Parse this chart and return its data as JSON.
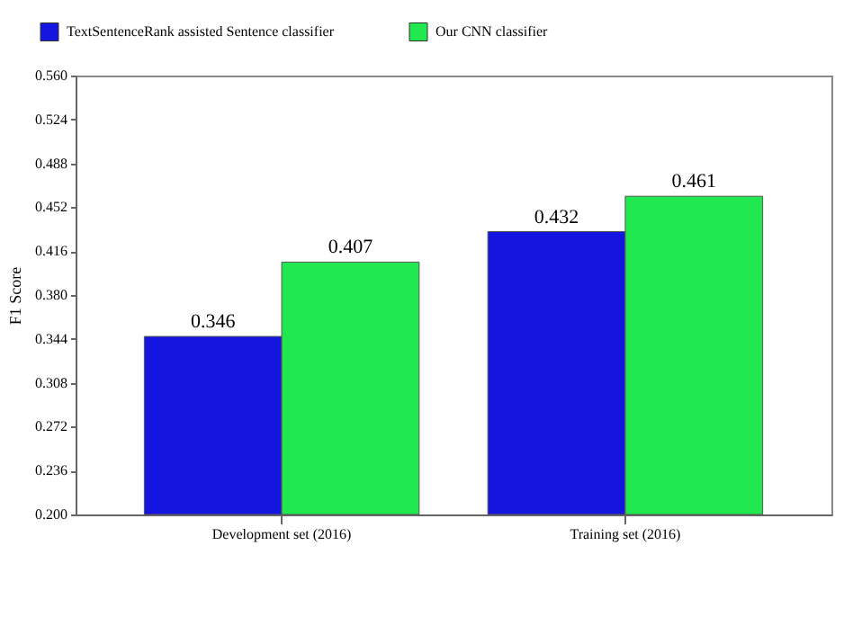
{
  "chart_data": {
    "type": "bar",
    "ylabel": "F1 Score",
    "categories": [
      "Development set (2016)",
      "Training set (2016)"
    ],
    "series": [
      {
        "name": "TextSentenceRank assisted Sentence classifier",
        "color": "#1515e0",
        "values": [
          0.346,
          0.432
        ]
      },
      {
        "name": "Our CNN classifier",
        "color": "#22e850",
        "values": [
          0.407,
          0.461
        ]
      }
    ],
    "ylim": [
      0.2,
      0.56
    ],
    "yticks": [
      {
        "value": 0.2,
        "label": "0.200"
      },
      0.236,
      0.272,
      0.308,
      0.344,
      {
        "value": 0.38,
        "label": "0.380"
      },
      0.416,
      0.452,
      0.488,
      0.524,
      {
        "value": 0.56,
        "label": "0.560"
      }
    ],
    "data_labels": true,
    "legend": "top left",
    "grid": false
  }
}
